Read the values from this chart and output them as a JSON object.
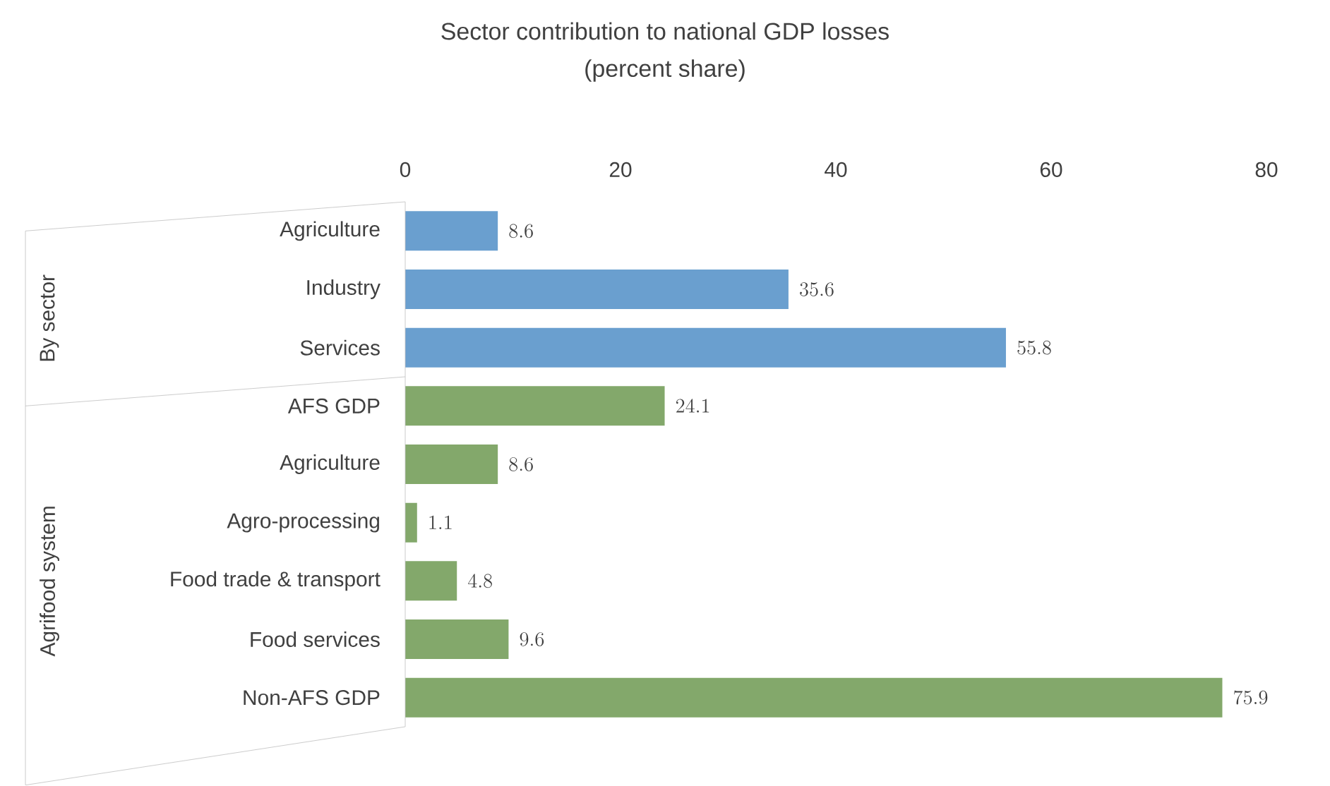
{
  "chart_data": {
    "type": "bar",
    "orientation": "horizontal",
    "title": "Sector contribution to national GDP losses",
    "subtitle": "(percent share)",
    "categories": [
      "Agriculture",
      "Industry",
      "Services",
      "AFS GDP",
      "Agriculture",
      "Agro-processing",
      "Food trade & transport",
      "Food services",
      "Non-AFS GDP"
    ],
    "values": [
      8.6,
      35.6,
      55.8,
      24.1,
      8.6,
      1.1,
      4.8,
      9.6,
      75.9
    ],
    "colors": [
      "#6a9fcf",
      "#6a9fcf",
      "#6a9fcf",
      "#83a86b",
      "#83a86b",
      "#83a86b",
      "#83a86b",
      "#83a86b",
      "#83a86b"
    ],
    "data_labels": true,
    "xlim": [
      0,
      80
    ],
    "xticks": [
      0,
      20,
      40,
      60,
      80
    ],
    "annotations": [
      "By sector",
      "Agrifood system"
    ]
  }
}
